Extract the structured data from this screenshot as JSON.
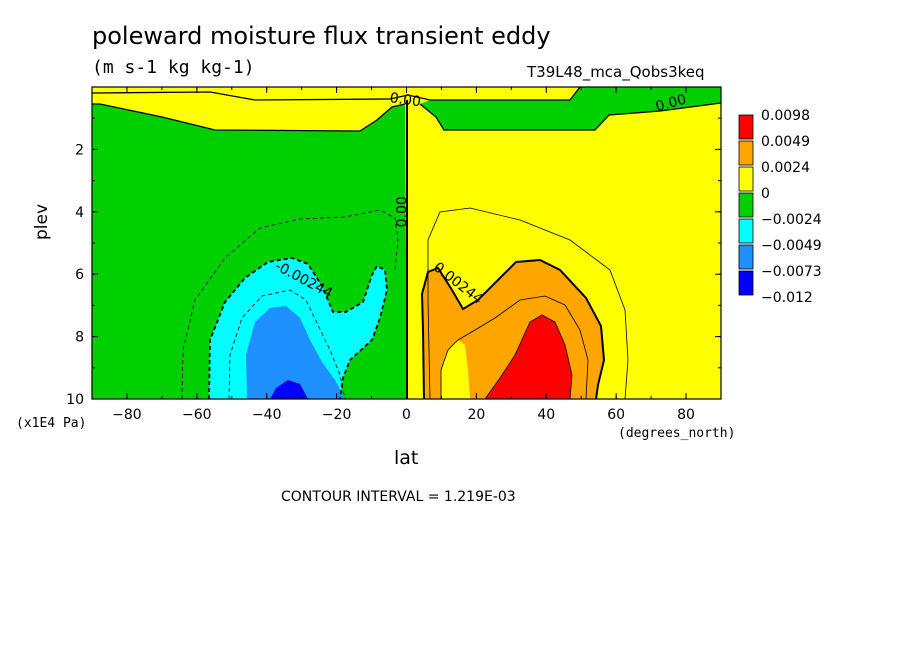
{
  "header": {
    "title": "poleward moisture flux transient eddy",
    "units": "(m s-1 kg kg-1)",
    "run_label": "T39L48_mca_Qobs3keq"
  },
  "footer": {
    "contour_interval": "CONTOUR INTERVAL = 1.219E-03"
  },
  "chart_data": {
    "type": "heatmap",
    "title": "poleward moisture flux transient eddy",
    "xlabel": "lat",
    "xunits": "(degrees_north)",
    "ylabel": "plev",
    "yunits": "(x1E4 Pa)",
    "xlim": [
      -90,
      90
    ],
    "ylim": [
      10,
      0
    ],
    "xticks": [
      -80,
      -60,
      -40,
      -20,
      0,
      20,
      40,
      60,
      80
    ],
    "xtick_labels": [
      "−80",
      "−60",
      "−40",
      "−20",
      "0",
      "20",
      "40",
      "60",
      "80"
    ],
    "yticks": [
      2,
      4,
      6,
      8,
      10
    ],
    "ytick_labels": [
      "2",
      "4",
      "6",
      "8",
      "10"
    ],
    "legend": [
      {
        "label": "0.0098",
        "color": "#ff0000"
      },
      {
        "label": "0.0049",
        "color": "#ff0000"
      },
      {
        "label": "0.0024",
        "color": "#ffa500"
      },
      {
        "label": "0",
        "color": "#ffff00"
      },
      {
        "label": "−0.0024",
        "color": "#00d000"
      },
      {
        "label": "−0.0049",
        "color": "#00ffff"
      },
      {
        "label": "−0.0073",
        "color": "#1e90ff"
      },
      {
        "label": "−0.012",
        "color": "#0000ff"
      }
    ],
    "legend_placement": "right",
    "contour_labels": [
      {
        "text": "0.00",
        "lat": -0.5,
        "plev": 0.55
      },
      {
        "text": "0.00",
        "lat": 76,
        "plev": 0.65
      },
      {
        "text": "0.00",
        "lat": 0,
        "plev": 4.0
      },
      {
        "text": "-0.00244",
        "lat": -30,
        "plev": 6.3
      },
      {
        "text": "0.00244",
        "lat": 14,
        "plev": 6.4
      }
    ],
    "contour_interval": 0.001219,
    "colors": {
      "yellow": "#ffff00",
      "green": "#00d000",
      "cyan": "#00ffff",
      "light_blue": "#1e90ff",
      "blue": "#0000ff",
      "orange": "#ffa500",
      "red": "#ff0000"
    }
  }
}
